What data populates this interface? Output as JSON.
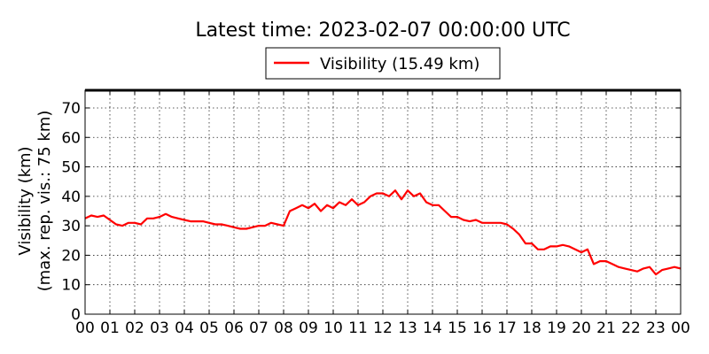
{
  "chart_data": {
    "type": "line",
    "title": "Latest time: 2023-02-07 00:00:00 UTC",
    "ylabel_line1": "Visibility (km)",
    "ylabel_line2": "(max. rep. vis.: 75 km)",
    "xlabel": "",
    "legend": {
      "placement": "top-center",
      "entries": [
        "Visibility (15.49 km)"
      ]
    },
    "grid": true,
    "xlim": [
      0,
      24
    ],
    "ylim": [
      0,
      76
    ],
    "x_tick_labels": [
      "00",
      "01",
      "02",
      "03",
      "04",
      "05",
      "06",
      "07",
      "08",
      "09",
      "10",
      "11",
      "12",
      "13",
      "14",
      "15",
      "16",
      "17",
      "18",
      "19",
      "20",
      "21",
      "22",
      "23",
      "00"
    ],
    "y_ticks": [
      0,
      10,
      20,
      30,
      40,
      50,
      60,
      70
    ],
    "series": [
      {
        "name": "Visibility (15.49 km)",
        "color": "#ff0000",
        "x": [
          0,
          0.25,
          0.5,
          0.75,
          1.0,
          1.25,
          1.5,
          1.75,
          2.0,
          2.25,
          2.5,
          2.75,
          3.0,
          3.25,
          3.5,
          3.75,
          4.0,
          4.25,
          4.5,
          4.75,
          5.0,
          5.25,
          5.5,
          5.75,
          6.0,
          6.25,
          6.5,
          6.75,
          7.0,
          7.25,
          7.5,
          7.75,
          8.0,
          8.25,
          8.5,
          8.75,
          9.0,
          9.25,
          9.5,
          9.75,
          10.0,
          10.25,
          10.5,
          10.75,
          11.0,
          11.25,
          11.5,
          11.75,
          12.0,
          12.25,
          12.5,
          12.75,
          13.0,
          13.25,
          13.5,
          13.75,
          14.0,
          14.25,
          14.5,
          14.75,
          15.0,
          15.25,
          15.5,
          15.75,
          16.0,
          16.25,
          16.5,
          16.75,
          17.0,
          17.25,
          17.5,
          17.75,
          18.0,
          18.25,
          18.5,
          18.75,
          19.0,
          19.25,
          19.5,
          19.75,
          20.0,
          20.25,
          20.5,
          20.75,
          21.0,
          21.25,
          21.5,
          21.75,
          22.0,
          22.25,
          22.5,
          22.75,
          23.0,
          23.25,
          23.5,
          23.75,
          24.0
        ],
        "values": [
          32.5,
          33.5,
          33,
          33.5,
          32,
          30.5,
          30,
          31,
          31,
          30.5,
          32.5,
          32.5,
          33,
          34,
          33,
          32.5,
          32,
          31.5,
          31.5,
          31.5,
          31,
          30.5,
          30.5,
          30,
          29.5,
          29,
          29,
          29.5,
          30,
          30,
          31,
          30.5,
          30,
          35,
          36,
          37,
          36,
          37.5,
          35,
          37,
          36,
          38,
          37,
          39,
          37,
          38,
          40,
          41,
          41,
          40,
          42,
          39,
          42,
          40,
          41,
          38,
          37,
          37,
          35,
          33,
          33,
          32,
          31.5,
          32,
          31,
          31,
          31,
          31,
          30.5,
          29,
          27,
          24,
          24,
          22,
          22,
          23,
          23,
          23.5,
          23,
          22,
          21,
          22,
          17,
          18,
          18,
          17,
          16,
          15.5,
          15,
          14.5,
          15.5,
          16,
          13.5,
          15,
          15.5,
          16,
          15.5
        ]
      }
    ]
  }
}
